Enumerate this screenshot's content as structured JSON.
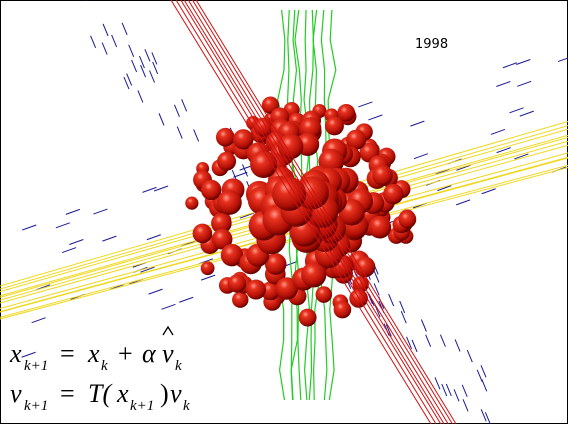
{
  "year": "1998",
  "equations": [
    [
      "x",
      "k+1",
      "=",
      "x",
      "k",
      "+",
      "α",
      "v",
      "k"
    ],
    [
      "v",
      "k+1",
      "=",
      "T(",
      "x",
      "k+1",
      ")",
      "v",
      "k"
    ]
  ]
}
